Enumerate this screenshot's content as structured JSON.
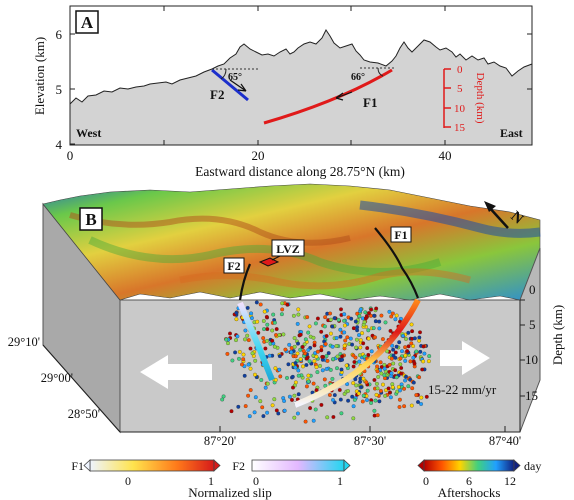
{
  "panelA": {
    "label": "A",
    "ylabel": "Elevation (km)",
    "xlabel": "Eastward distance along 28.75°N (km)",
    "yticks": [
      "4",
      "5",
      "6"
    ],
    "xticks": [
      "0",
      "20",
      "40"
    ],
    "west": "West",
    "east": "East",
    "fault1": "F1",
    "fault2": "F2",
    "angle1": "66°",
    "angle2": "65°",
    "depth_label": "Depth (km)",
    "depth_ticks": [
      "0",
      "5",
      "10",
      "15"
    ],
    "colors": {
      "f1": "#e01a1a",
      "f2": "#1c2fcc",
      "terrain": "#d3d3d3"
    }
  },
  "panelB": {
    "label": "B",
    "fault1": "F1",
    "fault2": "F2",
    "lvz": "LVZ",
    "north": "N",
    "rate": "15-22 mm/yr",
    "depth_label": "Depth (km)",
    "depth_ticks": [
      "0",
      "5",
      "10",
      "15"
    ],
    "lat_ticks": [
      "29°10'",
      "29°00'",
      "28°50'"
    ],
    "lon_ticks": [
      "87°20'",
      "87°30'",
      "87°40'"
    ]
  },
  "legend": {
    "f1": {
      "label": "F1",
      "min": "0",
      "max": "1"
    },
    "f2": {
      "label": "F2",
      "min": "0",
      "max": "1"
    },
    "slip_label": "Normalized slip",
    "aftershocks": {
      "ticks": [
        "0",
        "6",
        "12"
      ],
      "unit": "day",
      "label": "Aftershocks"
    }
  }
}
